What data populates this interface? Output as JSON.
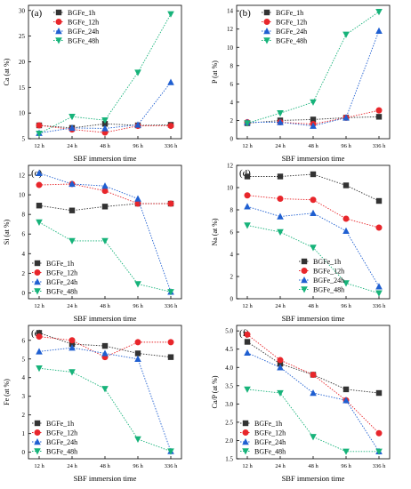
{
  "colors": {
    "BGFe_1h": "#333333",
    "BGFe_12h": "#e8262b",
    "BGFe_24h": "#1f5fd1",
    "BGFe_48h": "#17b37a"
  },
  "marker_shapes": {
    "BGFe_1h": "square",
    "BGFe_12h": "circle",
    "BGFe_24h": "triangle-up",
    "BGFe_48h": "triangle-down"
  },
  "chart_data": [
    {
      "id": "a",
      "panel_label": "(a)",
      "type": "line",
      "line_style": "dotted",
      "xlabel": "SBF immersion time",
      "ylabel": "Ca (at %)",
      "categories": [
        "12 h",
        "24 h",
        "48 h",
        "96 h",
        "336 h"
      ],
      "ylim": [
        5,
        31
      ],
      "yticks": [
        5,
        10,
        15,
        20,
        25,
        30
      ],
      "legend_position": "top-left",
      "series": [
        {
          "name": "BGFe_1h",
          "values": [
            7.6,
            7.1,
            7.9,
            7.6,
            7.7
          ]
        },
        {
          "name": "BGFe_12h",
          "values": [
            7.6,
            6.8,
            6.2,
            7.5,
            7.5
          ]
        },
        {
          "name": "BGFe_24h",
          "values": [
            6.1,
            7.1,
            7.0,
            7.7,
            16.0
          ]
        },
        {
          "name": "BGFe_48h",
          "values": [
            6.0,
            9.3,
            8.6,
            17.9,
            29.3
          ]
        }
      ]
    },
    {
      "id": "b",
      "panel_label": "(b)",
      "type": "line",
      "line_style": "dotted",
      "xlabel": "SBF immersion time",
      "ylabel": "P (at %)",
      "categories": [
        "12 h",
        "24 h",
        "48 h",
        "96 h",
        "336 h"
      ],
      "ylim": [
        0,
        14.6
      ],
      "yticks": [
        0,
        2,
        4,
        6,
        8,
        10,
        12,
        14
      ],
      "legend_position": "top-left",
      "series": [
        {
          "name": "BGFe_1h",
          "values": [
            1.7,
            2.0,
            2.1,
            2.3,
            2.4
          ]
        },
        {
          "name": "BGFe_12h",
          "values": [
            1.8,
            1.8,
            1.6,
            2.3,
            3.1
          ]
        },
        {
          "name": "BGFe_24h",
          "values": [
            1.8,
            1.8,
            1.4,
            2.3,
            11.8
          ]
        },
        {
          "name": "BGFe_48h",
          "values": [
            1.7,
            2.8,
            4.0,
            11.4,
            13.9
          ]
        }
      ]
    },
    {
      "id": "c",
      "panel_label": "(c)",
      "type": "line",
      "line_style": "dotted",
      "xlabel": "SBF immersion time",
      "ylabel": "Si (at %)",
      "categories": [
        "12 h",
        "24 h",
        "48 h",
        "96 h",
        "336 h"
      ],
      "ylim": [
        -0.6,
        13
      ],
      "yticks": [
        0,
        2,
        4,
        6,
        8,
        10,
        12
      ],
      "legend_position": "bottom-left",
      "series": [
        {
          "name": "BGFe_1h",
          "values": [
            8.9,
            8.4,
            8.8,
            9.1,
            9.1
          ]
        },
        {
          "name": "BGFe_12h",
          "values": [
            11.0,
            11.1,
            10.4,
            9.1,
            9.1
          ]
        },
        {
          "name": "BGFe_24h",
          "values": [
            12.2,
            11.1,
            10.9,
            9.6,
            0.1
          ]
        },
        {
          "name": "BGFe_48h",
          "values": [
            7.2,
            5.3,
            5.3,
            0.9,
            0.1
          ]
        }
      ]
    },
    {
      "id": "d",
      "panel_label": "(d)",
      "type": "line",
      "line_style": "dotted",
      "xlabel": "SBF immersion time",
      "ylabel": "Na (at %)",
      "categories": [
        "12 h",
        "24 h",
        "48 h",
        "96 h",
        "336 h"
      ],
      "ylim": [
        0,
        12
      ],
      "yticks": [
        0,
        2,
        4,
        6,
        8,
        10,
        12
      ],
      "legend_position": "bottom-right",
      "series": [
        {
          "name": "BGFe_1h",
          "values": [
            11.0,
            11.0,
            11.2,
            10.2,
            8.8
          ]
        },
        {
          "name": "BGFe_12h",
          "values": [
            9.3,
            9.0,
            8.9,
            7.2,
            6.4
          ]
        },
        {
          "name": "BGFe_24h",
          "values": [
            8.3,
            7.4,
            7.7,
            6.1,
            1.1
          ]
        },
        {
          "name": "BGFe_48h",
          "values": [
            6.6,
            6.0,
            4.6,
            1.4,
            0.5
          ]
        }
      ]
    },
    {
      "id": "e",
      "panel_label": "(e)",
      "type": "line",
      "line_style": "dotted",
      "xlabel": "SBF immersion time",
      "ylabel": "Fe (at %)",
      "categories": [
        "12 h",
        "24 h",
        "48 h",
        "96 h",
        "336 h"
      ],
      "ylim": [
        -0.35,
        6.8
      ],
      "yticks": [
        0,
        1,
        2,
        3,
        4,
        5,
        6
      ],
      "legend_position": "bottom-left",
      "series": [
        {
          "name": "BGFe_1h",
          "values": [
            6.4,
            5.8,
            5.7,
            5.3,
            5.1
          ]
        },
        {
          "name": "BGFe_12h",
          "values": [
            6.2,
            6.0,
            5.1,
            5.9,
            5.9
          ]
        },
        {
          "name": "BGFe_24h",
          "values": [
            5.4,
            5.6,
            5.3,
            5.0,
            0.05
          ]
        },
        {
          "name": "BGFe_48h",
          "values": [
            4.5,
            4.3,
            3.4,
            0.7,
            0.05
          ]
        }
      ]
    },
    {
      "id": "f",
      "panel_label": "(f)",
      "type": "line",
      "line_style": "dotted",
      "xlabel": "SBF immersion time",
      "ylabel": "Ca/P (at %)",
      "categories": [
        "12 h",
        "24 h",
        "48 h",
        "96 h",
        "336 h"
      ],
      "ylim": [
        1.5,
        5.15
      ],
      "yticks": [
        1.5,
        2.0,
        2.5,
        3.0,
        3.5,
        4.0,
        4.5,
        5.0
      ],
      "legend_position": "bottom-left",
      "series": [
        {
          "name": "BGFe_1h",
          "values": [
            4.7,
            4.1,
            3.8,
            3.4,
            3.3
          ]
        },
        {
          "name": "BGFe_12h",
          "values": [
            4.9,
            4.2,
            3.8,
            3.1,
            2.2
          ]
        },
        {
          "name": "BGFe_24h",
          "values": [
            4.4,
            4.0,
            3.3,
            3.1,
            1.7
          ]
        },
        {
          "name": "BGFe_48h",
          "values": [
            3.4,
            3.3,
            2.1,
            1.7,
            1.7
          ]
        }
      ]
    }
  ]
}
